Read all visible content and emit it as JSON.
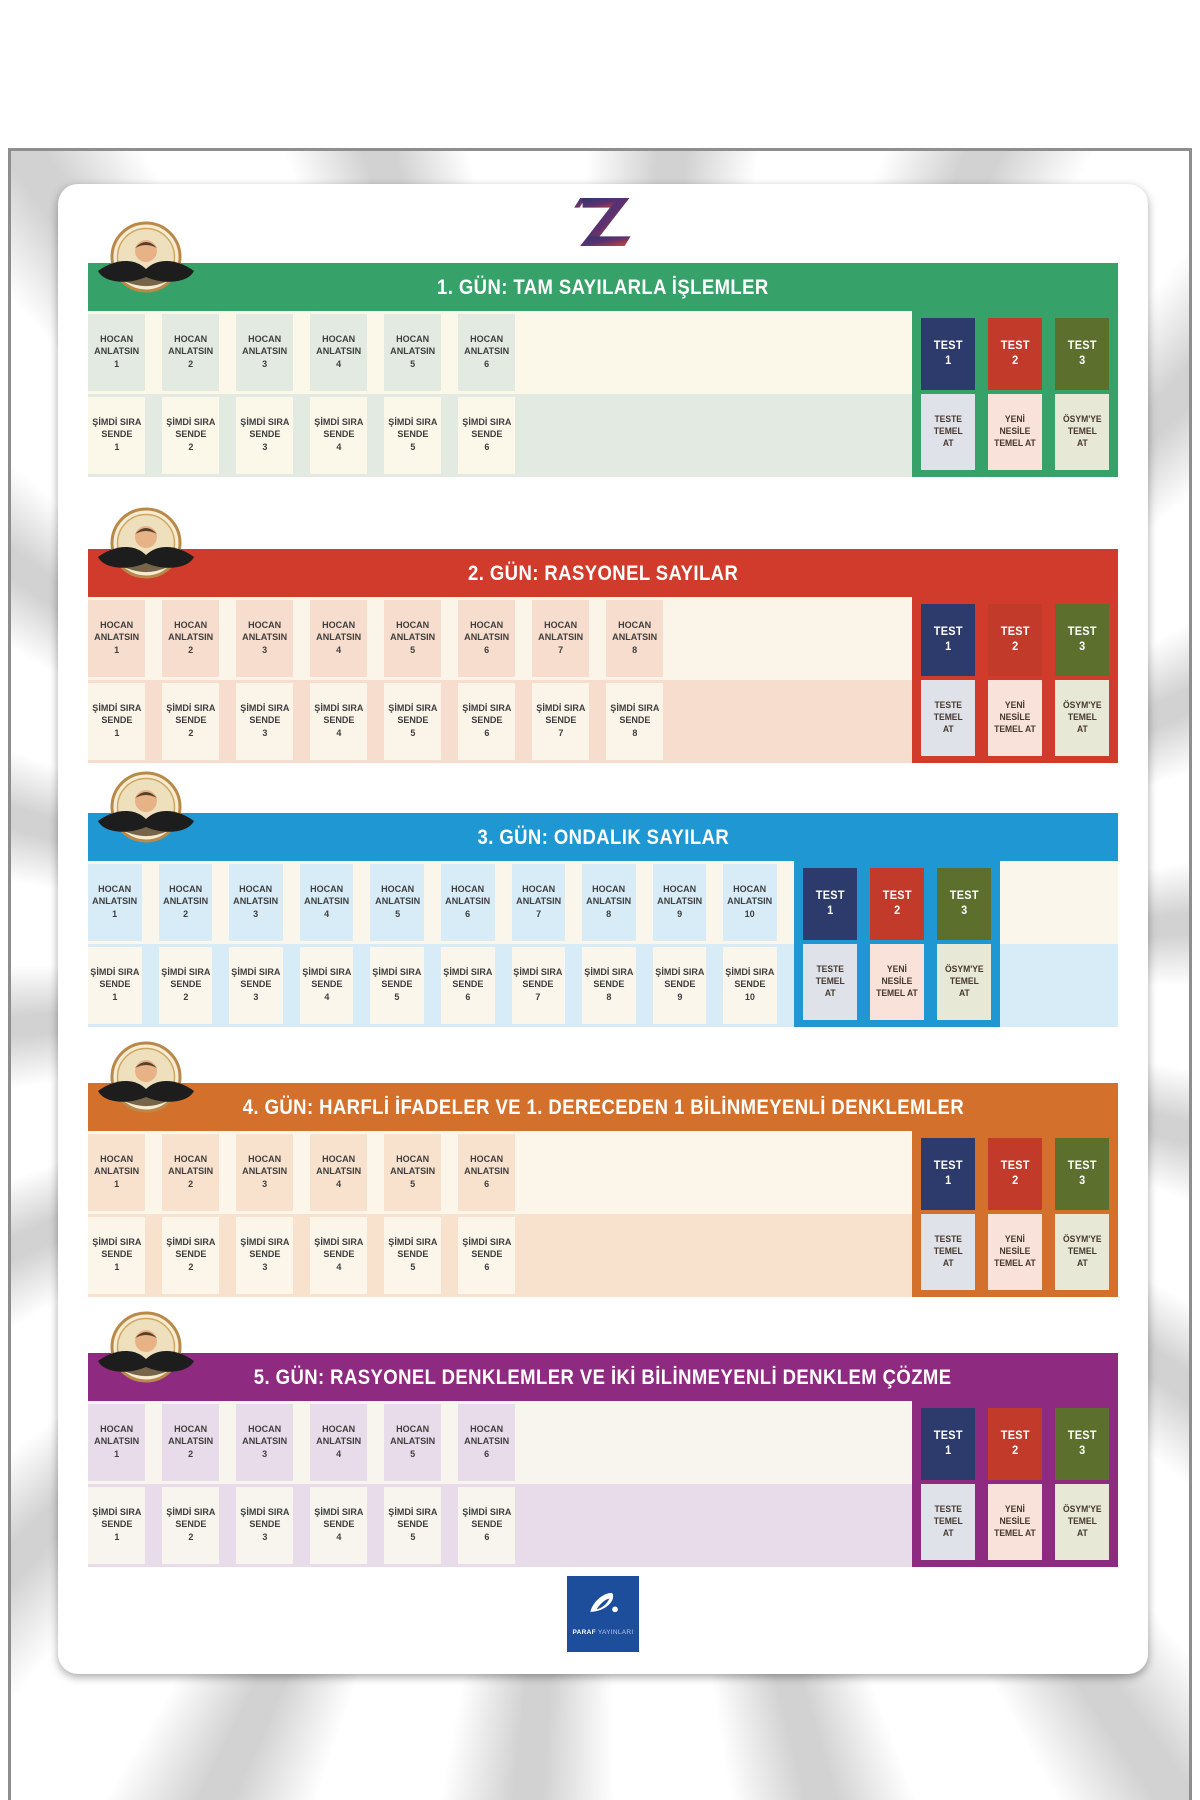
{
  "poster": {
    "brand_logo": "Z",
    "publisher": {
      "name_bold": "PARAF",
      "name_light": "YAYINLARI"
    }
  },
  "cell_labels": {
    "teach_lines": [
      "HOCAN",
      "ANLATSIN"
    ],
    "practice_lines": [
      "ŞİMDİ SIRA",
      "SENDE"
    ]
  },
  "test_columns": [
    {
      "label": "TEST",
      "number": "1",
      "color": "#2d3a6c",
      "sub_lines": [
        "TESTE",
        "TEMEL",
        "AT"
      ],
      "sub_bg": "#e0e2e9"
    },
    {
      "label": "TEST",
      "number": "2",
      "color": "#c23a2a",
      "sub_lines": [
        "YENİ",
        "NESİLE",
        "TEMEL AT"
      ],
      "sub_bg": "#f8e2d9"
    },
    {
      "label": "TEST",
      "number": "3",
      "color": "#5d6f2c",
      "sub_lines": [
        "ÖSYM'YE",
        "TEMEL",
        "AT"
      ],
      "sub_bg": "#e7e8d6"
    }
  ],
  "sections": [
    {
      "day": 1,
      "title": "1. GÜN: TAM SAYILARLA İŞLEMLER",
      "header_color": "#36a169",
      "tint": "#e2eae2",
      "cream": "#fbf7e9",
      "lesson_count": 6,
      "trailing_filler": 0
    },
    {
      "day": 2,
      "title": "2. GÜN: RASYONEL SAYILAR",
      "header_color": "#d13b2b",
      "tint": "#f7ddcd",
      "cream": "#fbf4e9",
      "lesson_count": 8,
      "trailing_filler": 0
    },
    {
      "day": 3,
      "title": "3. GÜN: ONDALIK SAYILAR",
      "header_color": "#1f97d3",
      "tint": "#d8ecf8",
      "cream": "#faf6ec",
      "lesson_count": 10,
      "trailing_filler": 118
    },
    {
      "day": 4,
      "title": "4. GÜN: HARFLİ İFADELER VE 1. DERECEDEN 1 BİLİNMEYENLİ DENKLEMLER",
      "header_color": "#d3712c",
      "tint": "#f8e2cd",
      "cream": "#fbf5ea",
      "lesson_count": 6,
      "trailing_filler": 0
    },
    {
      "day": 5,
      "title": "5. GÜN: RASYONEL DENKLEMLER VE İKİ BİLİNMEYENLİ DENKLEM ÇÖZME",
      "header_color": "#8e2b80",
      "tint": "#e9dcea",
      "cream": "#f8f4ee",
      "lesson_count": 6,
      "trailing_filler": 0
    }
  ]
}
